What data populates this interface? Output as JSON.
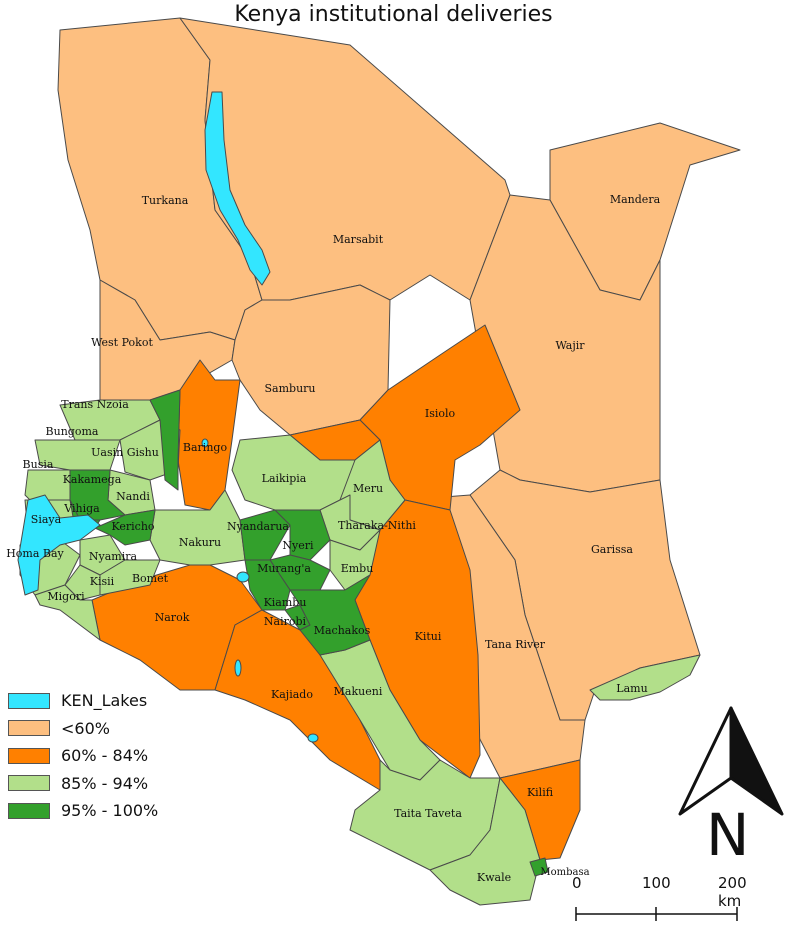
{
  "title": "Kenya institutional deliveries",
  "legend": {
    "items": [
      {
        "label": "KEN_Lakes",
        "color": "#33e6ff"
      },
      {
        "label": "<60%",
        "color": "#fdbf80"
      },
      {
        "label": "60% - 84%",
        "color": "#ff8000"
      },
      {
        "label": "85% - 94%",
        "color": "#b2df8a"
      },
      {
        "label": "95% - 100%",
        "color": "#33a02c"
      }
    ]
  },
  "counties": [
    {
      "name": "Turkana",
      "class": "<60%"
    },
    {
      "name": "Marsabit",
      "class": "<60%"
    },
    {
      "name": "Mandera",
      "class": "<60%"
    },
    {
      "name": "Wajir",
      "class": "<60%"
    },
    {
      "name": "West Pokot",
      "class": "<60%"
    },
    {
      "name": "Samburu",
      "class": "<60%"
    },
    {
      "name": "Isiolo",
      "class": "60% - 84%"
    },
    {
      "name": "Garissa",
      "class": "<60%"
    },
    {
      "name": "Trans Nzoia",
      "class": "85% - 94%"
    },
    {
      "name": "Bungoma",
      "class": "85% - 94%"
    },
    {
      "name": "Uasin Gishu",
      "class": "85% - 94%"
    },
    {
      "name": "Baringo",
      "class": "60% - 84%"
    },
    {
      "name": "Laikipia",
      "class": "85% - 94%"
    },
    {
      "name": "Meru",
      "class": "85% - 94%"
    },
    {
      "name": "Busia",
      "class": "85% - 94%"
    },
    {
      "name": "Kakamega",
      "class": "95% - 100%"
    },
    {
      "name": "Nandi",
      "class": "85% - 94%"
    },
    {
      "name": "Siaya",
      "class": "85% - 94%"
    },
    {
      "name": "Vihiga",
      "class": "95% - 100%"
    },
    {
      "name": "Kericho",
      "class": "95% - 100%"
    },
    {
      "name": "Nyandarua",
      "class": "95% - 100%"
    },
    {
      "name": "Tharaka-Nithi",
      "class": "85% - 94%"
    },
    {
      "name": "Nyeri",
      "class": "95% - 100%"
    },
    {
      "name": "Homa Bay",
      "class": "85% - 94%"
    },
    {
      "name": "Nyamira",
      "class": "85% - 94%"
    },
    {
      "name": "Nakuru",
      "class": "85% - 94%"
    },
    {
      "name": "Murang'a",
      "class": "95% - 100%"
    },
    {
      "name": "Embu",
      "class": "85% - 94%"
    },
    {
      "name": "Kisii",
      "class": "85% - 94%"
    },
    {
      "name": "Bomet",
      "class": "85% - 94%"
    },
    {
      "name": "Migori",
      "class": "85% - 94%"
    },
    {
      "name": "Kiambu",
      "class": "95% - 100%"
    },
    {
      "name": "Nairobi",
      "class": "95% - 100%"
    },
    {
      "name": "Narok",
      "class": "60% - 84%"
    },
    {
      "name": "Machakos",
      "class": "95% - 100%"
    },
    {
      "name": "Kitui",
      "class": "60% - 84%"
    },
    {
      "name": "Tana River",
      "class": "<60%"
    },
    {
      "name": "Lamu",
      "class": "85% - 94%"
    },
    {
      "name": "Makueni",
      "class": "85% - 94%"
    },
    {
      "name": "Kajiado",
      "class": "60% - 84%"
    },
    {
      "name": "Kilifi",
      "class": "60% - 84%"
    },
    {
      "name": "Taita Taveta",
      "class": "85% - 94%"
    },
    {
      "name": "Mombasa",
      "class": "95% - 100%"
    },
    {
      "name": "Kwale",
      "class": "85% - 94%"
    }
  ],
  "scale_bar": {
    "labels": [
      "0",
      "100",
      "200 km"
    ]
  },
  "north_arrow": {
    "letter": "N"
  }
}
